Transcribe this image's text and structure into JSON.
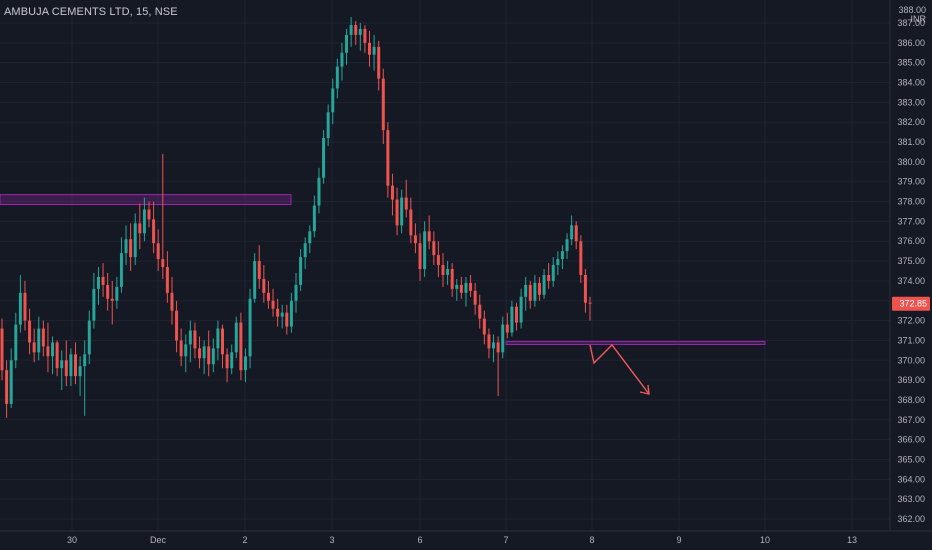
{
  "header": {
    "title": "AMBUJA CEMENTS LTD, 15, NSE",
    "currency_top": "388.00",
    "currency_unit": "INR"
  },
  "chart_data": {
    "type": "candlestick",
    "ylim": [
      361.5,
      388.0
    ],
    "y_ticks": [
      "362.00",
      "363.00",
      "364.00",
      "365.00",
      "366.00",
      "367.00",
      "368.00",
      "369.00",
      "370.00",
      "371.00",
      "372.00",
      "373.00",
      "374.00",
      "375.00",
      "376.00",
      "377.00",
      "378.00",
      "379.00",
      "380.00",
      "381.00",
      "382.00",
      "383.00",
      "384.00",
      "385.00",
      "386.00",
      "387.00"
    ],
    "x_ticks": [
      {
        "label": "30",
        "session": 1
      },
      {
        "label": "Dec",
        "session": 2
      },
      {
        "label": "2",
        "session": 3
      },
      {
        "label": "3",
        "session": 4
      },
      {
        "label": "6",
        "session": 5
      },
      {
        "label": "7",
        "session": 6
      },
      {
        "label": "8",
        "session": 7
      },
      {
        "label": "9",
        "session": 8
      },
      {
        "label": "10",
        "session": 9
      },
      {
        "label": "13",
        "session": 10
      }
    ],
    "last_price": "372.85",
    "colors": {
      "up": "#26a69a",
      "down": "#ef5350",
      "zone": "#9c27b0",
      "arrow": "#f05a5a"
    },
    "candles": [
      {
        "o": 371.6,
        "h": 372.1,
        "l": 369.0,
        "c": 369.5
      },
      {
        "o": 369.5,
        "h": 370.0,
        "l": 367.1,
        "c": 367.8
      },
      {
        "o": 367.8,
        "h": 370.6,
        "l": 367.6,
        "c": 370.0
      },
      {
        "o": 370.0,
        "h": 372.4,
        "l": 369.6,
        "c": 371.8
      },
      {
        "o": 371.8,
        "h": 374.3,
        "l": 371.4,
        "c": 373.4
      },
      {
        "o": 373.4,
        "h": 374.0,
        "l": 371.5,
        "c": 372.0
      },
      {
        "o": 372.0,
        "h": 372.6,
        "l": 370.3,
        "c": 370.9
      },
      {
        "o": 370.9,
        "h": 371.6,
        "l": 369.9,
        "c": 370.4
      },
      {
        "o": 370.4,
        "h": 372.2,
        "l": 370.0,
        "c": 371.6
      },
      {
        "o": 371.6,
        "h": 372.0,
        "l": 370.2,
        "c": 370.7
      },
      {
        "o": 370.7,
        "h": 371.9,
        "l": 369.4,
        "c": 370.2
      },
      {
        "o": 370.2,
        "h": 371.2,
        "l": 369.3,
        "c": 370.9
      },
      {
        "o": 370.9,
        "h": 371.0,
        "l": 369.2,
        "c": 369.6
      },
      {
        "o": 369.6,
        "h": 370.5,
        "l": 368.5,
        "c": 370.0
      },
      {
        "o": 370.0,
        "h": 371.0,
        "l": 368.7,
        "c": 369.2
      },
      {
        "o": 369.2,
        "h": 370.6,
        "l": 368.7,
        "c": 370.3
      },
      {
        "o": 370.3,
        "h": 370.9,
        "l": 368.8,
        "c": 369.2
      },
      {
        "o": 369.2,
        "h": 370.2,
        "l": 368.2,
        "c": 369.7
      },
      {
        "o": 369.7,
        "h": 371.0,
        "l": 367.2,
        "c": 370.3
      },
      {
        "o": 370.3,
        "h": 372.5,
        "l": 369.8,
        "c": 372.0
      },
      {
        "o": 372.0,
        "h": 374.4,
        "l": 371.6,
        "c": 373.6
      },
      {
        "o": 373.6,
        "h": 374.7,
        "l": 372.8,
        "c": 374.2
      },
      {
        "o": 374.2,
        "h": 374.9,
        "l": 373.2,
        "c": 373.8
      },
      {
        "o": 373.8,
        "h": 374.4,
        "l": 372.5,
        "c": 373.1
      },
      {
        "o": 373.1,
        "h": 374.0,
        "l": 371.8,
        "c": 373.0
      },
      {
        "o": 373.0,
        "h": 374.2,
        "l": 372.6,
        "c": 373.7
      },
      {
        "o": 373.7,
        "h": 376.2,
        "l": 373.4,
        "c": 375.4
      },
      {
        "o": 375.4,
        "h": 376.8,
        "l": 374.8,
        "c": 376.1
      },
      {
        "o": 376.1,
        "h": 376.9,
        "l": 374.5,
        "c": 375.2
      },
      {
        "o": 375.2,
        "h": 377.4,
        "l": 374.8,
        "c": 376.9
      },
      {
        "o": 376.9,
        "h": 377.9,
        "l": 375.6,
        "c": 376.4
      },
      {
        "o": 376.4,
        "h": 378.2,
        "l": 376.0,
        "c": 377.6
      },
      {
        "o": 377.6,
        "h": 378.0,
        "l": 376.7,
        "c": 377.1
      },
      {
        "o": 377.1,
        "h": 378.0,
        "l": 375.4,
        "c": 375.9
      },
      {
        "o": 375.9,
        "h": 376.6,
        "l": 374.5,
        "c": 375.1
      },
      {
        "o": 375.1,
        "h": 380.4,
        "l": 374.1,
        "c": 374.7
      },
      {
        "o": 374.7,
        "h": 375.5,
        "l": 372.9,
        "c": 373.4
      },
      {
        "o": 373.4,
        "h": 374.2,
        "l": 371.8,
        "c": 372.5
      },
      {
        "o": 372.5,
        "h": 373.0,
        "l": 370.4,
        "c": 371.0
      },
      {
        "o": 371.0,
        "h": 371.6,
        "l": 369.7,
        "c": 370.2
      },
      {
        "o": 370.2,
        "h": 371.3,
        "l": 369.4,
        "c": 370.8
      },
      {
        "o": 370.8,
        "h": 372.0,
        "l": 369.9,
        "c": 371.5
      },
      {
        "o": 371.5,
        "h": 371.9,
        "l": 370.1,
        "c": 370.6
      },
      {
        "o": 370.6,
        "h": 371.2,
        "l": 369.6,
        "c": 370.1
      },
      {
        "o": 370.1,
        "h": 371.0,
        "l": 369.3,
        "c": 370.7
      },
      {
        "o": 370.7,
        "h": 371.5,
        "l": 369.2,
        "c": 369.8
      },
      {
        "o": 369.8,
        "h": 371.1,
        "l": 369.4,
        "c": 370.6
      },
      {
        "o": 370.6,
        "h": 372.0,
        "l": 370.0,
        "c": 371.6
      },
      {
        "o": 371.6,
        "h": 371.8,
        "l": 369.6,
        "c": 370.3
      },
      {
        "o": 370.3,
        "h": 370.6,
        "l": 368.9,
        "c": 369.6
      },
      {
        "o": 369.6,
        "h": 370.8,
        "l": 369.3,
        "c": 370.4
      },
      {
        "o": 370.4,
        "h": 372.2,
        "l": 370.1,
        "c": 371.9
      },
      {
        "o": 371.9,
        "h": 372.4,
        "l": 369.0,
        "c": 369.5
      },
      {
        "o": 369.5,
        "h": 370.6,
        "l": 368.9,
        "c": 370.2
      },
      {
        "o": 370.2,
        "h": 373.6,
        "l": 369.6,
        "c": 373.1
      },
      {
        "o": 373.1,
        "h": 375.4,
        "l": 372.9,
        "c": 375.0
      },
      {
        "o": 375.0,
        "h": 375.8,
        "l": 373.6,
        "c": 374.1
      },
      {
        "o": 374.1,
        "h": 374.8,
        "l": 372.9,
        "c": 373.4
      },
      {
        "o": 373.4,
        "h": 374.0,
        "l": 372.6,
        "c": 373.0
      },
      {
        "o": 373.0,
        "h": 373.6,
        "l": 372.2,
        "c": 372.6
      },
      {
        "o": 372.6,
        "h": 373.1,
        "l": 371.7,
        "c": 372.2
      },
      {
        "o": 372.2,
        "h": 372.8,
        "l": 371.6,
        "c": 372.4
      },
      {
        "o": 372.4,
        "h": 372.8,
        "l": 371.3,
        "c": 371.7
      },
      {
        "o": 371.7,
        "h": 373.4,
        "l": 371.4,
        "c": 373.0
      },
      {
        "o": 373.0,
        "h": 374.4,
        "l": 372.4,
        "c": 373.8
      },
      {
        "o": 373.8,
        "h": 375.6,
        "l": 373.5,
        "c": 375.2
      },
      {
        "o": 375.2,
        "h": 376.2,
        "l": 374.6,
        "c": 375.9
      },
      {
        "o": 375.9,
        "h": 376.8,
        "l": 375.4,
        "c": 376.5
      },
      {
        "o": 376.5,
        "h": 378.3,
        "l": 376.2,
        "c": 377.8
      },
      {
        "o": 377.8,
        "h": 379.7,
        "l": 377.4,
        "c": 379.2
      },
      {
        "o": 379.2,
        "h": 381.6,
        "l": 378.9,
        "c": 381.2
      },
      {
        "o": 381.2,
        "h": 382.9,
        "l": 380.8,
        "c": 382.5
      },
      {
        "o": 382.5,
        "h": 384.2,
        "l": 381.9,
        "c": 383.7
      },
      {
        "o": 383.7,
        "h": 385.2,
        "l": 383.2,
        "c": 384.8
      },
      {
        "o": 384.8,
        "h": 386.0,
        "l": 384.1,
        "c": 385.5
      },
      {
        "o": 385.5,
        "h": 386.7,
        "l": 384.9,
        "c": 386.4
      },
      {
        "o": 386.4,
        "h": 387.3,
        "l": 385.8,
        "c": 386.9
      },
      {
        "o": 386.9,
        "h": 387.1,
        "l": 385.9,
        "c": 386.4
      },
      {
        "o": 386.4,
        "h": 387.0,
        "l": 385.6,
        "c": 386.7
      },
      {
        "o": 386.7,
        "h": 386.9,
        "l": 385.5,
        "c": 386.0
      },
      {
        "o": 386.0,
        "h": 386.6,
        "l": 384.8,
        "c": 385.4
      },
      {
        "o": 385.4,
        "h": 386.4,
        "l": 384.6,
        "c": 385.8
      },
      {
        "o": 385.8,
        "h": 386.1,
        "l": 383.6,
        "c": 384.2
      },
      {
        "o": 384.2,
        "h": 384.7,
        "l": 380.9,
        "c": 381.6
      },
      {
        "o": 381.6,
        "h": 382.0,
        "l": 378.2,
        "c": 378.8
      },
      {
        "o": 378.8,
        "h": 379.4,
        "l": 377.3,
        "c": 378.1
      },
      {
        "o": 378.1,
        "h": 378.7,
        "l": 376.3,
        "c": 376.8
      },
      {
        "o": 376.8,
        "h": 378.6,
        "l": 376.4,
        "c": 378.2
      },
      {
        "o": 378.2,
        "h": 379.1,
        "l": 377.2,
        "c": 377.6
      },
      {
        "o": 377.6,
        "h": 378.2,
        "l": 375.9,
        "c": 376.3
      },
      {
        "o": 376.3,
        "h": 376.9,
        "l": 375.4,
        "c": 375.9
      },
      {
        "o": 375.9,
        "h": 376.4,
        "l": 374.0,
        "c": 374.6
      },
      {
        "o": 374.6,
        "h": 377.0,
        "l": 374.2,
        "c": 376.5
      },
      {
        "o": 376.5,
        "h": 377.3,
        "l": 375.6,
        "c": 376.0
      },
      {
        "o": 376.0,
        "h": 376.5,
        "l": 374.8,
        "c": 375.3
      },
      {
        "o": 375.3,
        "h": 376.0,
        "l": 374.2,
        "c": 374.8
      },
      {
        "o": 374.8,
        "h": 375.4,
        "l": 373.7,
        "c": 374.3
      },
      {
        "o": 374.3,
        "h": 375.0,
        "l": 373.8,
        "c": 374.6
      },
      {
        "o": 374.6,
        "h": 374.9,
        "l": 373.2,
        "c": 373.6
      },
      {
        "o": 373.6,
        "h": 374.1,
        "l": 373.0,
        "c": 373.8
      },
      {
        "o": 373.8,
        "h": 374.2,
        "l": 373.1,
        "c": 373.4
      },
      {
        "o": 373.4,
        "h": 374.2,
        "l": 372.7,
        "c": 373.9
      },
      {
        "o": 373.9,
        "h": 374.3,
        "l": 373.2,
        "c": 373.5
      },
      {
        "o": 373.5,
        "h": 373.9,
        "l": 372.3,
        "c": 372.8
      },
      {
        "o": 372.8,
        "h": 373.3,
        "l": 371.6,
        "c": 372.1
      },
      {
        "o": 372.1,
        "h": 372.5,
        "l": 370.8,
        "c": 371.3
      },
      {
        "o": 371.3,
        "h": 371.6,
        "l": 370.1,
        "c": 370.6
      },
      {
        "o": 370.6,
        "h": 371.3,
        "l": 369.9,
        "c": 370.9
      },
      {
        "o": 370.9,
        "h": 371.2,
        "l": 368.2,
        "c": 370.4
      },
      {
        "o": 370.4,
        "h": 372.2,
        "l": 370.1,
        "c": 371.8
      },
      {
        "o": 371.8,
        "h": 372.4,
        "l": 371.1,
        "c": 371.4
      },
      {
        "o": 371.4,
        "h": 373.0,
        "l": 371.2,
        "c": 372.7
      },
      {
        "o": 372.7,
        "h": 372.9,
        "l": 371.5,
        "c": 371.9
      },
      {
        "o": 371.9,
        "h": 373.6,
        "l": 371.6,
        "c": 373.2
      },
      {
        "o": 373.2,
        "h": 374.2,
        "l": 372.5,
        "c": 373.8
      },
      {
        "o": 373.8,
        "h": 374.0,
        "l": 372.6,
        "c": 373.0
      },
      {
        "o": 373.0,
        "h": 374.3,
        "l": 372.7,
        "c": 373.9
      },
      {
        "o": 373.9,
        "h": 374.2,
        "l": 373.0,
        "c": 373.3
      },
      {
        "o": 373.3,
        "h": 374.6,
        "l": 373.1,
        "c": 374.3
      },
      {
        "o": 374.3,
        "h": 374.9,
        "l": 373.6,
        "c": 374.0
      },
      {
        "o": 374.0,
        "h": 375.2,
        "l": 373.7,
        "c": 374.8
      },
      {
        "o": 374.8,
        "h": 375.5,
        "l": 374.3,
        "c": 375.1
      },
      {
        "o": 375.1,
        "h": 375.8,
        "l": 374.6,
        "c": 375.5
      },
      {
        "o": 375.5,
        "h": 376.4,
        "l": 375.1,
        "c": 376.1
      },
      {
        "o": 376.1,
        "h": 377.3,
        "l": 375.8,
        "c": 376.8
      },
      {
        "o": 376.8,
        "h": 377.0,
        "l": 375.6,
        "c": 376.0
      },
      {
        "o": 376.0,
        "h": 376.3,
        "l": 373.9,
        "c": 374.3
      },
      {
        "o": 374.3,
        "h": 374.6,
        "l": 372.4,
        "c": 372.9
      },
      {
        "o": 372.9,
        "h": 373.2,
        "l": 372.0,
        "c": 372.85
      }
    ],
    "drawings": {
      "resistance_zone": {
        "top": 378.35,
        "bottom": 377.85
      },
      "support_zone": {
        "top": 370.95,
        "bottom": 370.8
      }
    }
  }
}
